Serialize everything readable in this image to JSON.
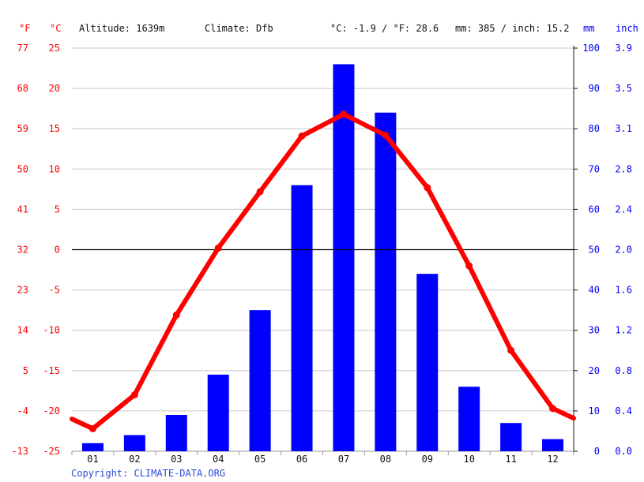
{
  "header": {
    "unit_f": "°F",
    "unit_c": "°C",
    "altitude": "Altitude: 1639m",
    "climate": "Climate: Dfb",
    "temp_summary": "°C: -1.9 / °F: 28.6",
    "precip_summary": "mm: 385 / inch: 15.2",
    "unit_mm": "mm",
    "unit_inch": "inch"
  },
  "footer": {
    "copyright": "Copyright: CLIMATE-DATA.ORG"
  },
  "colors": {
    "temperature": "#ff0000",
    "precipitation": "#0000ff",
    "grid": "#c8c8c8",
    "zero_line": "#000000"
  },
  "chart_data": {
    "type": "bar+line",
    "categories": [
      "01",
      "02",
      "03",
      "04",
      "05",
      "06",
      "07",
      "08",
      "09",
      "10",
      "11",
      "12"
    ],
    "precipitation_mm": [
      2,
      4,
      9,
      19,
      35,
      66,
      96,
      84,
      44,
      16,
      7,
      3
    ],
    "temperature_c": [
      -22.2,
      -18.0,
      -8.1,
      0.2,
      7.2,
      14.1,
      16.8,
      14.2,
      7.7,
      -2.0,
      -12.5,
      -19.7
    ],
    "temperature_edges_c": [
      -21.0,
      -20.9
    ],
    "ylim_c": [
      -25,
      25
    ],
    "ylim_mm": [
      0,
      100
    ],
    "ticks_c": [
      "25",
      "20",
      "15",
      "10",
      "5",
      "0",
      "-5",
      "-10",
      "-15",
      "-20",
      "-25"
    ],
    "ticks_f": [
      "77",
      "68",
      "59",
      "50",
      "41",
      "32",
      "23",
      "14",
      "5",
      "-4",
      "-13"
    ],
    "ticks_mm": [
      "100",
      "90",
      "80",
      "70",
      "60",
      "50",
      "40",
      "30",
      "20",
      "10",
      "0"
    ],
    "ticks_inch": [
      "3.9",
      "3.5",
      "3.1",
      "2.8",
      "2.4",
      "2.0",
      "1.6",
      "1.2",
      "0.8",
      "0.4",
      "0.0"
    ],
    "grid": true
  }
}
